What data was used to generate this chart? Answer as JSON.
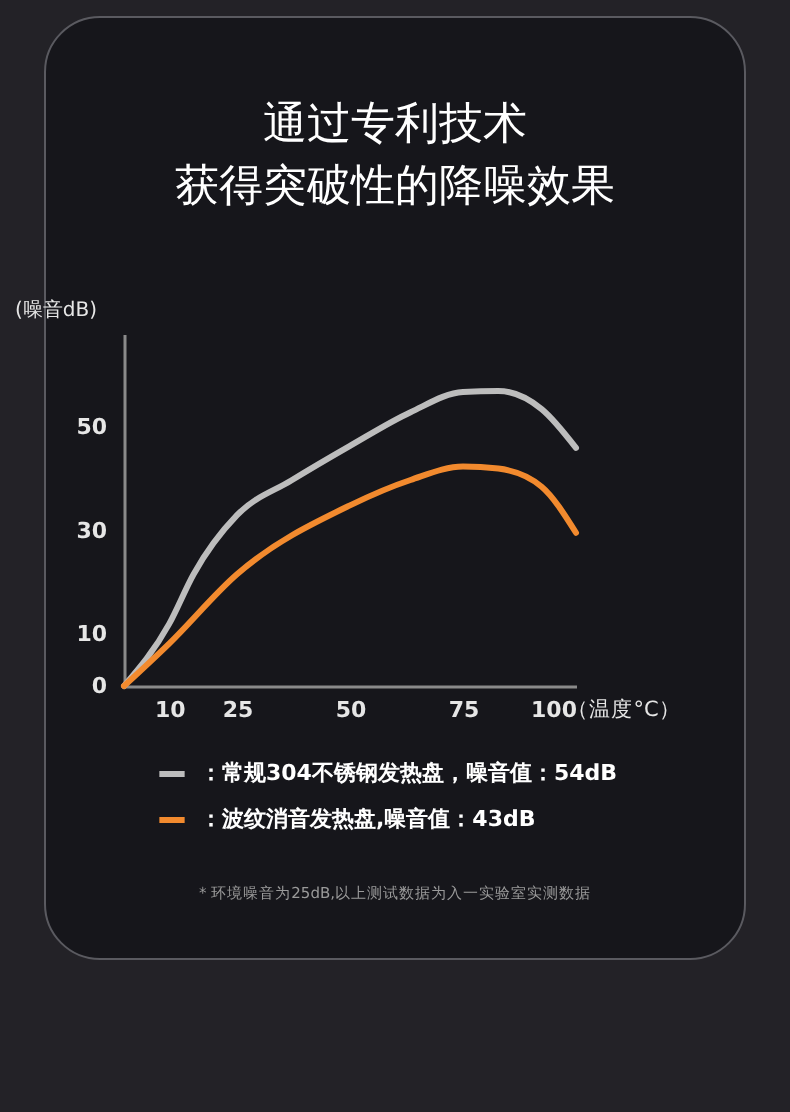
{
  "chart_data": {
    "type": "line",
    "title": "通过专利技术",
    "subtitle": "获得突破性的降噪效果",
    "ylabel": "(噪音dB)",
    "xlabel": "（温度°C）",
    "x": [
      0,
      10,
      15.4,
      25,
      37,
      50,
      63.4,
      75,
      82.8,
      92.4,
      100
    ],
    "series": [
      {
        "name": "：常规304不锈钢发热盘，噪音值：54dB",
        "color": "#bdbdbd",
        "values": [
          0,
          12,
          21.6,
          33,
          39.7,
          46.4,
          52.9,
          56.8,
          57,
          53.5,
          46
        ]
      },
      {
        "name": "：波纹消音发热盘,噪音值：43dB",
        "color": "#f28a2e",
        "values": [
          0,
          8.2,
          null,
          21.6,
          null,
          34.9,
          39.8,
          42.4,
          42,
          38.5,
          29.6
        ]
      }
    ],
    "xlim": [
      0,
      100
    ],
    "xticks": [
      10,
      25,
      50,
      75,
      100
    ],
    "ylim": [
      0,
      68
    ],
    "yticks": [
      0,
      10,
      30,
      50
    ],
    "legend": "bottom",
    "annotations": [
      "* 环境噪音为25dB,以上测试数据为入一实验室实测数据"
    ]
  }
}
